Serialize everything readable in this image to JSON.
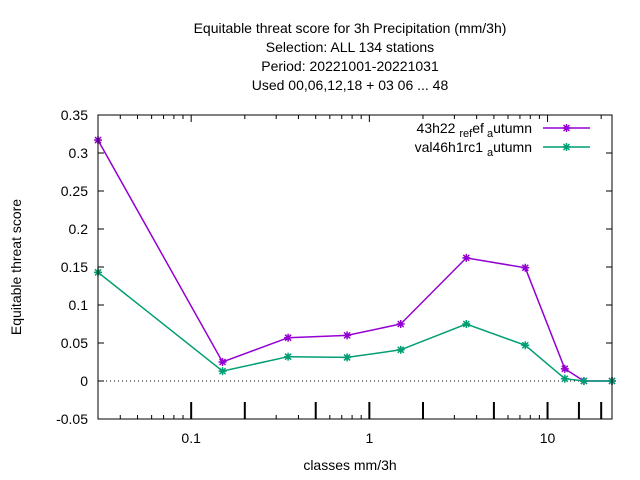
{
  "chart_data": {
    "type": "line",
    "title_lines": [
      "Equitable threat score  for 3h Precipitation (mm/3h)",
      "Selection: ALL    134 stations",
      "Period: 20221001-20221031",
      "Used  00,06,12,18  + 03 06 ... 48"
    ],
    "xlabel": "classes mm/3h",
    "ylabel": "Equitable threat score",
    "x_scale": "log",
    "xlim": [
      0.03,
      23
    ],
    "ylim": [
      -0.05,
      0.35
    ],
    "y_ticks": [
      -0.05,
      0,
      0.05,
      0.1,
      0.15,
      0.2,
      0.25,
      0.3,
      0.35
    ],
    "y_tick_labels": [
      "-0.05",
      "0",
      "0.05",
      "0.1",
      "0.15",
      "0.2",
      "0.25",
      "0.3",
      "0.35"
    ],
    "x_major_ticks": [
      0.1,
      1,
      10
    ],
    "x_major_tick_labels": [
      "0.1",
      "1",
      "10"
    ],
    "x_minor_ticks": [
      0.04,
      0.05,
      0.06,
      0.07,
      0.08,
      0.09,
      0.2,
      0.3,
      0.4,
      0.5,
      0.6,
      0.7,
      0.8,
      0.9,
      2,
      3,
      4,
      5,
      6,
      7,
      8,
      9,
      20
    ],
    "x_class_ticks": [
      0.1,
      0.2,
      0.5,
      1,
      2,
      5,
      10,
      15,
      20
    ],
    "x": [
      0.03,
      0.15,
      0.35,
      0.75,
      1.5,
      3.5,
      7.5,
      12.5,
      16,
      23
    ],
    "series": [
      {
        "legend_parts": [
          "43h22",
          "ref",
          "a",
          "utumn"
        ],
        "color": "#9400d3",
        "values": [
          0.317,
          0.025,
          0.057,
          0.06,
          0.075,
          0.162,
          0.149,
          0.016,
          0.0,
          0.0
        ]
      },
      {
        "legend_parts": [
          "val46h1rc1",
          "a",
          "utumn"
        ],
        "color": "#009e73",
        "values": [
          0.143,
          0.013,
          0.032,
          0.031,
          0.041,
          0.075,
          0.047,
          0.003,
          0.0,
          0.0
        ]
      }
    ],
    "legend_position": "top-right",
    "grid": false
  }
}
